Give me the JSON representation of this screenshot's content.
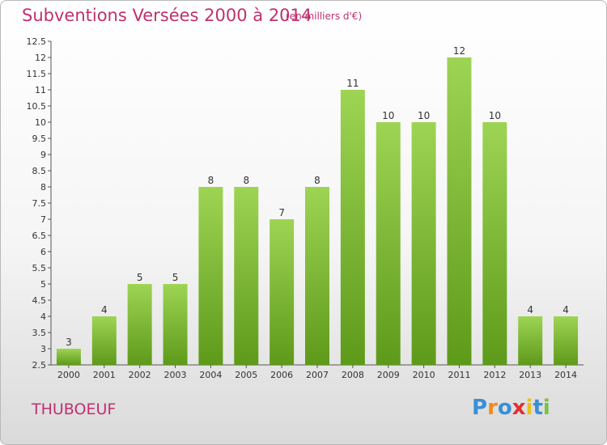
{
  "header": {
    "title": "Subventions Versées 2000 à 2014",
    "unit": "(en milliers d'€)"
  },
  "footer": {
    "location": "THUBOEUF",
    "logo": {
      "text": "Proxiti",
      "letters": [
        "P",
        "r",
        "o",
        "x",
        "i",
        "t",
        "i"
      ],
      "colors": [
        "#3a8fd6",
        "#f08a1c",
        "#3a8fd6",
        "#e03030",
        "#e8c020",
        "#3a8fd6",
        "#7cc040"
      ]
    }
  },
  "chart_data": {
    "type": "bar",
    "title": "Subventions Versées 2000 à 2014",
    "subtitle": "(en milliers d'€)",
    "categories": [
      "2000",
      "2001",
      "2002",
      "2003",
      "2004",
      "2005",
      "2006",
      "2007",
      "2008",
      "2009",
      "2010",
      "2011",
      "2012",
      "2013",
      "2014"
    ],
    "values": [
      3,
      4,
      5,
      5,
      8,
      8,
      7,
      8,
      11,
      10,
      10,
      12,
      10,
      4,
      4
    ],
    "ylim": [
      2.5,
      12.5
    ],
    "yticks": [
      "2.5",
      "3",
      "3.5",
      "4",
      "4.5",
      "5",
      "5.5",
      "6",
      "6.5",
      "7",
      "7.5",
      "8",
      "8.5",
      "9",
      "9.5",
      "10",
      "10.5",
      "11",
      "11.5",
      "12",
      "12.5"
    ],
    "grid": false,
    "bar_color_top": "#9ed454",
    "bar_color_bottom": "#5e9a1a"
  }
}
